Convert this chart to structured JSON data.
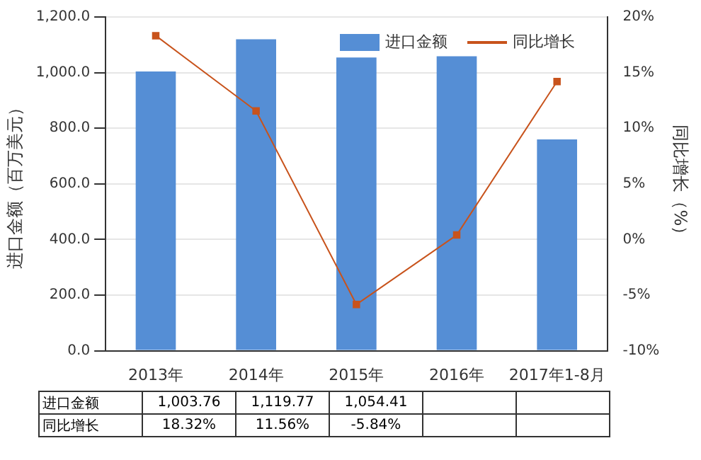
{
  "chart_data": {
    "type": "bar",
    "categories": [
      "2013年",
      "2014年",
      "2015年",
      "2016年",
      "2017年1-8月"
    ],
    "ylabel": "进口金额（百万美元）",
    "y2label": "同比增长（%）",
    "series": [
      {
        "name": "进口金额",
        "color": "#558ed5",
        "values": [
          1003.76,
          1119.77,
          1054.41,
          1059,
          760
        ],
        "value_labels": [
          "1,003.76",
          "1,119.77",
          "1,054.41",
          null,
          null
        ]
      },
      {
        "name": "同比增长",
        "type": "line",
        "axis": "y2",
        "color": "#c8531c",
        "values": [
          18.32,
          11.56,
          -5.84,
          0.4,
          14.2
        ],
        "value_labels": [
          "18.32%",
          "11.56%",
          "-5.84%",
          null,
          null
        ]
      }
    ],
    "ylim": [
      0,
      1200
    ],
    "yticks": [
      {
        "value": 0,
        "label": "0.0"
      },
      {
        "value": 200,
        "label": "200.0"
      },
      {
        "value": 400,
        "label": "400.0"
      },
      {
        "value": 600,
        "label": "600.0"
      },
      {
        "value": 800,
        "label": "800.0"
      },
      {
        "value": 1000,
        "label": "1,000.0"
      },
      {
        "value": 1200,
        "label": "1,200.0"
      }
    ],
    "y2lim": [
      -10,
      20
    ],
    "y2ticks": [
      {
        "value": -10,
        "label": "-10%"
      },
      {
        "value": -5,
        "label": "-5%"
      },
      {
        "value": 0,
        "label": "0%"
      },
      {
        "value": 5,
        "label": "5%"
      },
      {
        "value": 10,
        "label": "10%"
      },
      {
        "value": 15,
        "label": "15%"
      },
      {
        "value": 20,
        "label": "20%"
      }
    ],
    "grid": "y",
    "legend": "top right",
    "marker": "square",
    "line_style": "solid"
  }
}
